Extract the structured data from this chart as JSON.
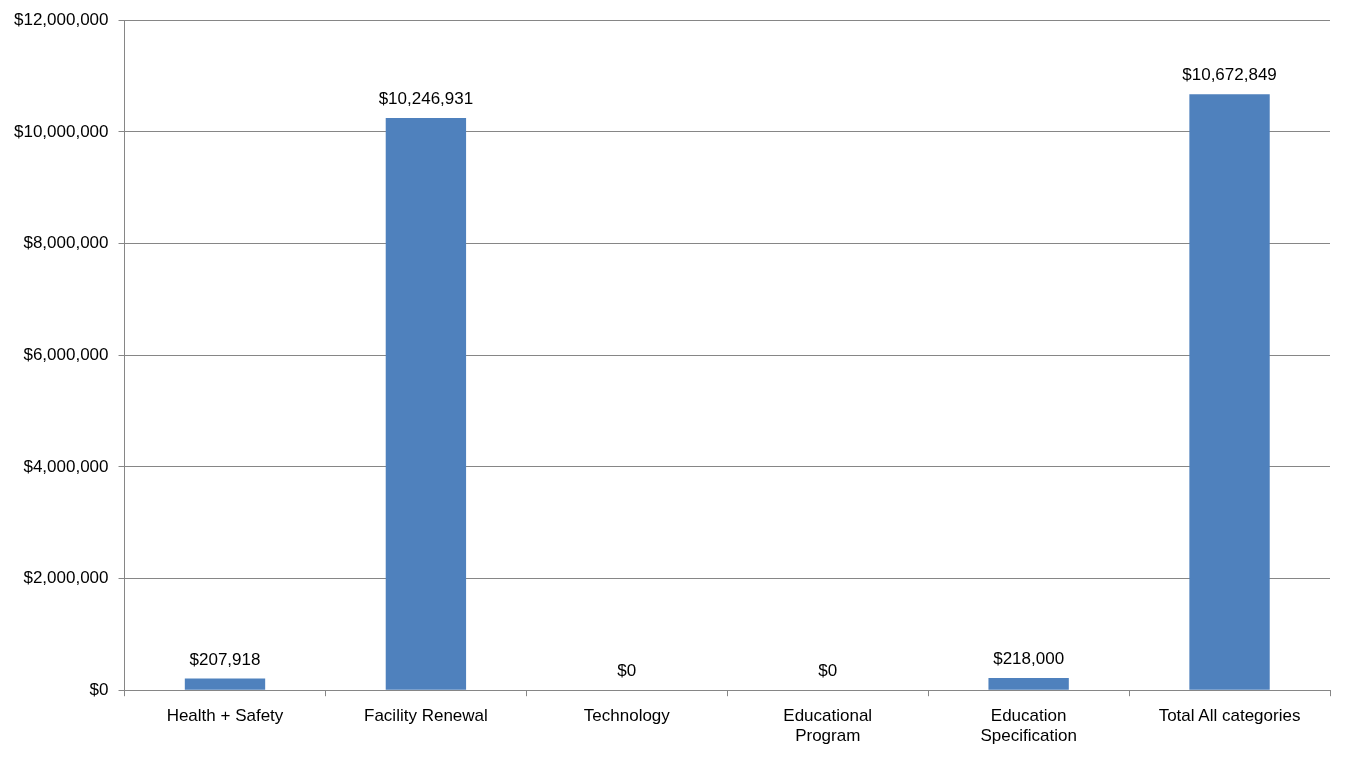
{
  "chart_data": {
    "type": "bar",
    "categories": [
      "Health + Safety",
      "Facility Renewal",
      "Technology",
      "Educational\nProgram",
      "Education\nSpecification",
      "Total All categories"
    ],
    "values": [
      207918,
      10246931,
      0,
      0,
      218000,
      10672849
    ],
    "color": "#4f81bd",
    "value_labels": [
      "$207,918",
      "$10,246,931",
      "$0",
      "$0",
      "$218,000",
      "$10,672,849"
    ],
    "ylim": [
      0,
      12000000
    ],
    "yticks": [
      {
        "value": 0,
        "label": "$0"
      },
      {
        "value": 2000000,
        "label": "$2,000,000"
      },
      {
        "value": 4000000,
        "label": "$4,000,000"
      },
      {
        "value": 6000000,
        "label": "$6,000,000"
      },
      {
        "value": 8000000,
        "label": "$8,000,000"
      },
      {
        "value": 10000000,
        "label": "$10,000,000"
      },
      {
        "value": 12000000,
        "label": "$12,000,000"
      }
    ],
    "grid": "y",
    "legend": false
  }
}
